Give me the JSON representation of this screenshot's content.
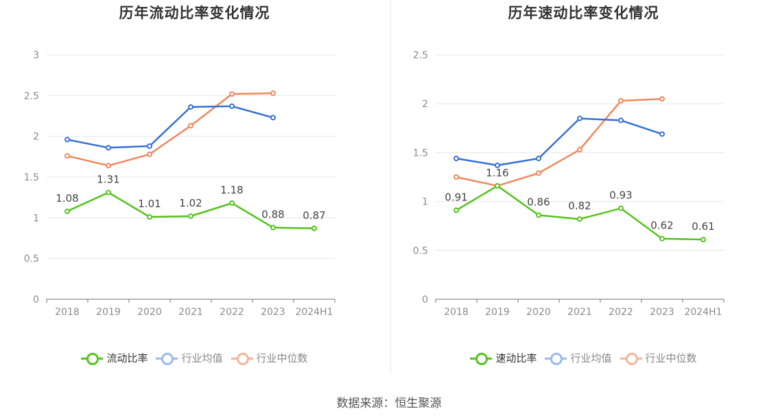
{
  "chart_data": [
    {
      "type": "line",
      "title": "历年流动比率变化情况",
      "categories": [
        "2018",
        "2019",
        "2020",
        "2021",
        "2022",
        "2023",
        "2024H1"
      ],
      "ylim": [
        0,
        3
      ],
      "yticks": [
        "0",
        "0.5",
        "1",
        "1.5",
        "2",
        "2.5",
        "3"
      ],
      "grid": true,
      "legend_position": "bottom",
      "series": [
        {
          "name": "流动比率",
          "color": "#52c41a",
          "values": [
            1.08,
            1.31,
            1.01,
            1.02,
            1.18,
            0.88,
            0.87
          ],
          "labels": [
            "1.08",
            "1.31",
            "1.01",
            "1.02",
            "1.18",
            "0.88",
            "0.87"
          ]
        },
        {
          "name": "行业均值",
          "color": "#3370d6",
          "values": [
            1.96,
            1.86,
            1.88,
            2.36,
            2.37,
            2.23,
            null
          ]
        },
        {
          "name": "行业中位数",
          "color": "#f0875a",
          "values": [
            1.76,
            1.64,
            1.78,
            2.13,
            2.52,
            2.53,
            null
          ]
        }
      ]
    },
    {
      "type": "line",
      "title": "历年速动比率变化情况",
      "categories": [
        "2018",
        "2019",
        "2020",
        "2021",
        "2022",
        "2023",
        "2024H1"
      ],
      "ylim": [
        0,
        2.5
      ],
      "yticks": [
        "0",
        "0.5",
        "1",
        "1.5",
        "2",
        "2.5"
      ],
      "grid": true,
      "legend_position": "bottom",
      "series": [
        {
          "name": "速动比率",
          "color": "#52c41a",
          "values": [
            0.91,
            1.16,
            0.86,
            0.82,
            0.93,
            0.62,
            0.61
          ],
          "labels": [
            "0.91",
            "1.16",
            "0.86",
            "0.82",
            "0.93",
            "0.62",
            "0.61"
          ]
        },
        {
          "name": "行业均值",
          "color": "#3370d6",
          "values": [
            1.44,
            1.37,
            1.44,
            1.85,
            1.83,
            1.69,
            null
          ]
        },
        {
          "name": "行业中位数",
          "color": "#f0875a",
          "values": [
            1.25,
            1.16,
            1.29,
            1.53,
            2.03,
            2.05,
            null
          ]
        }
      ]
    }
  ],
  "legend_colors": {
    "main": "#52c41a",
    "avg": "#9bb8ef",
    "median": "#f5b39a"
  },
  "source": "数据来源：恒生聚源"
}
